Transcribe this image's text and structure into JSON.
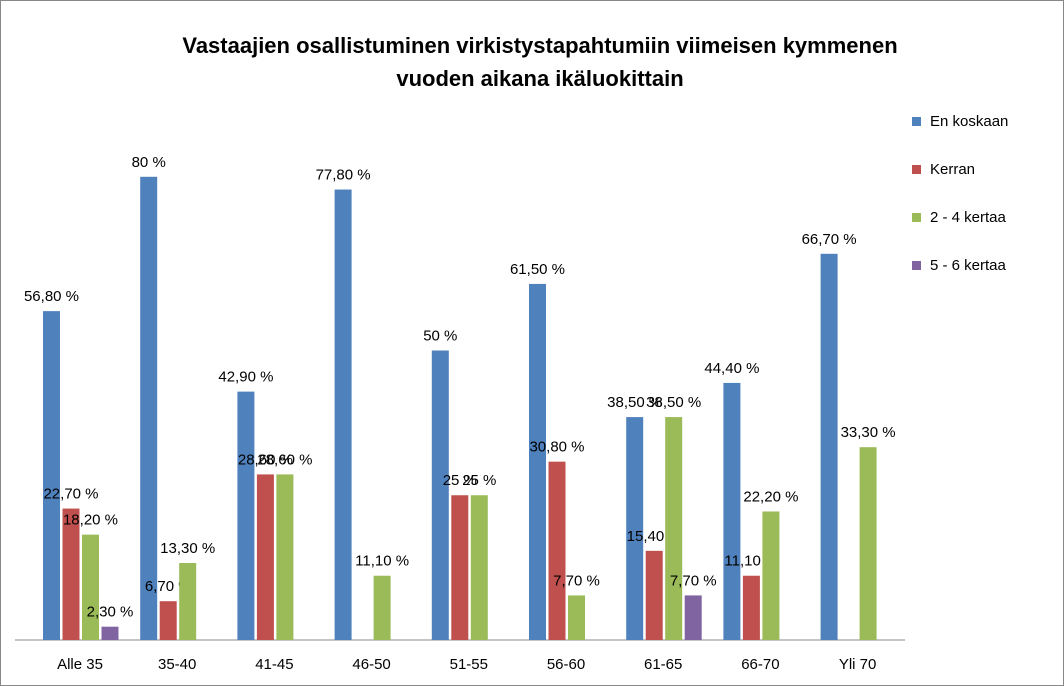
{
  "chart_data": {
    "type": "bar",
    "title": [
      "Vastaajien osallistuminen virkistystapahtumiin viimeisen kymmenen",
      "vuoden aikana ikäluokittain"
    ],
    "categories": [
      "Alle 35",
      "35-40",
      "41-45",
      "46-50",
      "51-55",
      "56-60",
      "61-65",
      "66-70",
      "Yli 70"
    ],
    "series": [
      {
        "name": "En koskaan",
        "color": "#4f81bd",
        "values": [
          56.8,
          80,
          42.9,
          77.8,
          50,
          61.5,
          38.5,
          44.4,
          66.7
        ],
        "value_labels": [
          "56,80 %",
          "80 %",
          "42,90 %",
          "77,80 %",
          "50 %",
          "61,50 %",
          "38,50 %",
          "44,40 %",
          "66,70 %"
        ]
      },
      {
        "name": "Kerran",
        "color": "#c0504d",
        "values": [
          22.7,
          6.7,
          28.6,
          null,
          25,
          30.8,
          15.4,
          11.1,
          null
        ],
        "value_labels": [
          "22,70 %",
          "6,70 %",
          "28,60 %",
          null,
          "25 %",
          "30,80 %",
          "15,40 %",
          "11,10 %",
          null
        ]
      },
      {
        "name": "2 - 4 kertaa",
        "color": "#9bbb59",
        "values": [
          18.2,
          13.3,
          28.6,
          11.1,
          25,
          7.7,
          38.5,
          22.2,
          33.3
        ],
        "value_labels": [
          "18,20 %",
          "13,30 %",
          "28,60 %",
          "11,10 %",
          "25 %",
          "7,70 %",
          "38,50 %",
          "22,20 %",
          "33,30 %"
        ]
      },
      {
        "name": "5 - 6 kertaa",
        "color": "#8064a2",
        "values": [
          2.3,
          null,
          null,
          null,
          null,
          null,
          7.7,
          null,
          null
        ],
        "value_labels": [
          "2,30 %",
          null,
          null,
          null,
          null,
          null,
          "7,70 %",
          null,
          null
        ]
      }
    ],
    "legend": "right"
  }
}
